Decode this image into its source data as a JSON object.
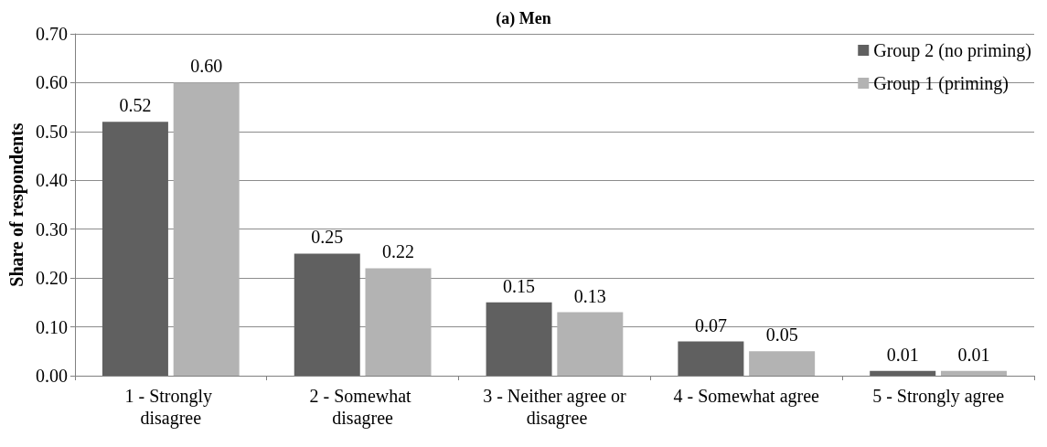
{
  "chart_data": {
    "type": "bar",
    "title": "(a) Men",
    "ylabel": "Share of respondents",
    "categories": [
      "1 - Strongly disagree",
      "2 - Somewhat disagree",
      "3 - Neither agree or disagree",
      "4 - Somewhat agree",
      "5 - Strongly agree"
    ],
    "series": [
      {
        "name": "Group 2 (no priming)",
        "color": "#606060",
        "values": [
          0.52,
          0.25,
          0.15,
          0.07,
          0.01
        ],
        "value_labels": [
          "0.52",
          "0.25",
          "0.15",
          "0.07",
          "0.01"
        ]
      },
      {
        "name": "Group 1 (priming)",
        "color": "#b3b3b3",
        "values": [
          0.6,
          0.22,
          0.13,
          0.05,
          0.01
        ],
        "value_labels": [
          "0.60",
          "0.22",
          "0.13",
          "0.05",
          "0.01"
        ]
      }
    ],
    "ylim": [
      0,
      0.7
    ],
    "yticks": [
      {
        "value": 0,
        "label": "0.00"
      },
      {
        "value": 0.1,
        "label": "0.10"
      },
      {
        "value": 0.2,
        "label": "0.20"
      },
      {
        "value": 0.3,
        "label": "0.30"
      },
      {
        "value": 0.4,
        "label": "0.40"
      },
      {
        "value": 0.5,
        "label": "0.50"
      },
      {
        "value": 0.6,
        "label": "0.60"
      },
      {
        "value": 0.7,
        "label": "0.70"
      }
    ],
    "grid": "y",
    "legend": "top right"
  }
}
